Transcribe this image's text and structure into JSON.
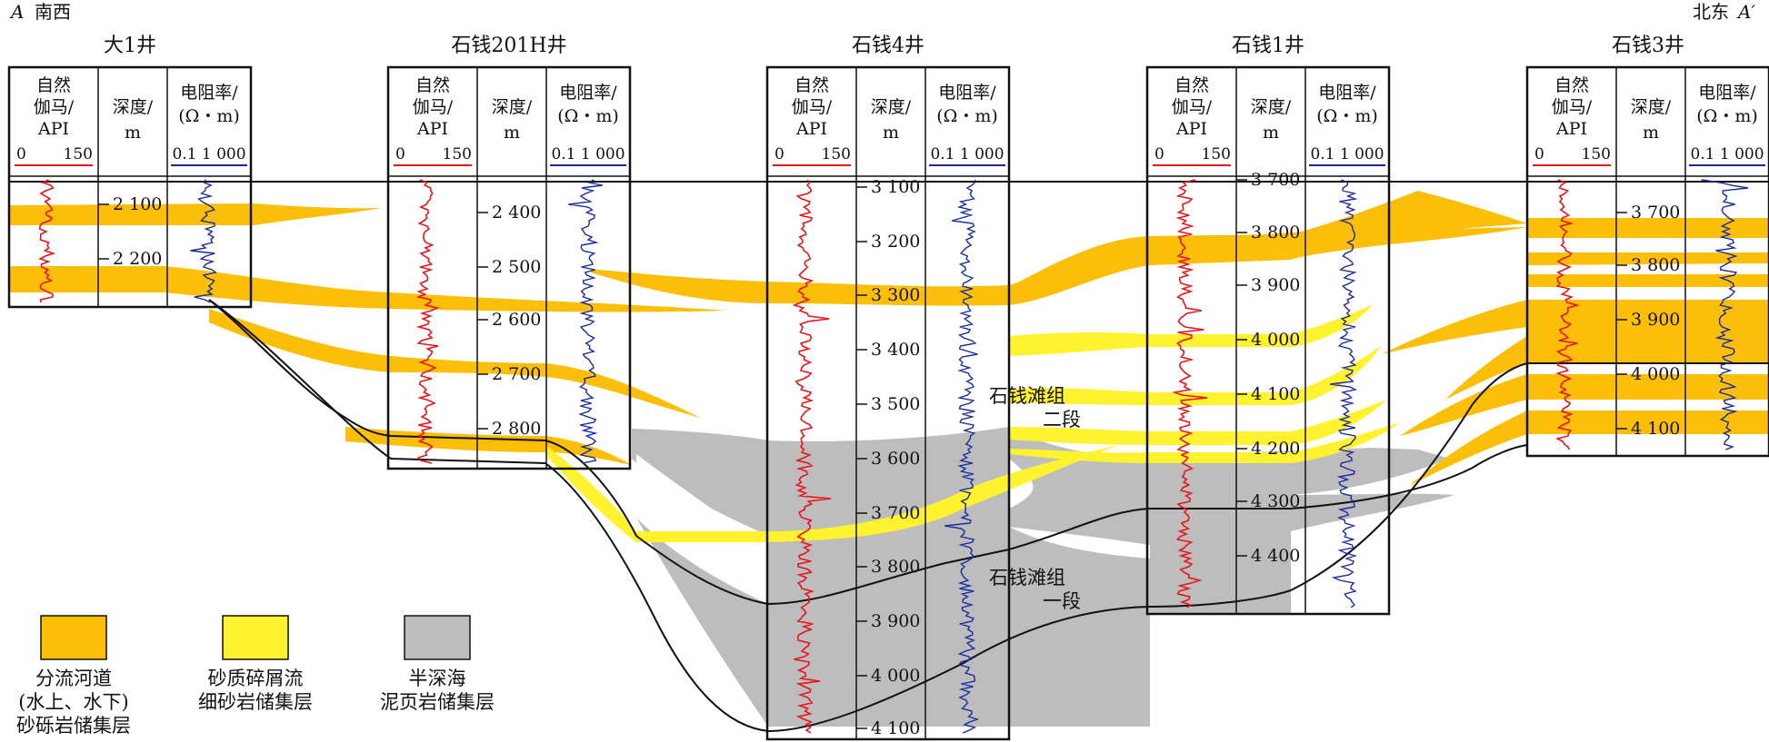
{
  "corners": {
    "left_letter": "A",
    "left_dir": "南西",
    "right_dir": "北东",
    "right_letter": "A′"
  },
  "headers": {
    "gamma": [
      "自然",
      "伽马/",
      "API"
    ],
    "depth": [
      "深度/",
      "m"
    ],
    "resistivity": [
      "电阻率/",
      "(Ω・m)"
    ],
    "gamma_scale": [
      "0",
      "150"
    ],
    "res_scale": "0.1 1 000"
  },
  "wells": [
    {
      "name": "大1井",
      "depths": [
        "2 100",
        "2 200"
      ]
    },
    {
      "name": "石钱201H井",
      "depths": [
        "2 400",
        "2 500",
        "2 600",
        "2 700",
        "2 800"
      ]
    },
    {
      "name": "石钱4井",
      "depths": [
        "3 100",
        "3 200",
        "3 300",
        "3 400",
        "3 500",
        "3 600",
        "3 700",
        "3 800",
        "3 900",
        "4 000",
        "4 100"
      ]
    },
    {
      "name": "石钱1井",
      "depths": [
        "3 700",
        "3 800",
        "3 900",
        "4 000",
        "4 100",
        "4 200",
        "4 300",
        "4 400"
      ]
    },
    {
      "name": "石钱3井",
      "depths": [
        "3 700",
        "3 800",
        "3 900",
        "4 000",
        "4 100"
      ]
    }
  ],
  "formations": {
    "upper": [
      "石钱滩组",
      "二段"
    ],
    "lower": [
      "石钱滩组",
      "一段"
    ]
  },
  "legend": [
    {
      "label": [
        "分流河道",
        "(水上、水下)",
        "砂砾岩储集层"
      ],
      "color": "#fbbf0a"
    },
    {
      "label": [
        "砂质碎屑流",
        "细砂岩储集层"
      ],
      "color": "#fff22e"
    },
    {
      "label": [
        "半深海",
        "泥页岩储集层"
      ],
      "color": "#bdbdbd"
    }
  ],
  "colors": {
    "orange": "#fbbf0a",
    "yellow": "#fff22e",
    "gray": "#bdbdbd",
    "gamma_curve": "#e8141c",
    "res_curve": "#1a2a9c"
  }
}
